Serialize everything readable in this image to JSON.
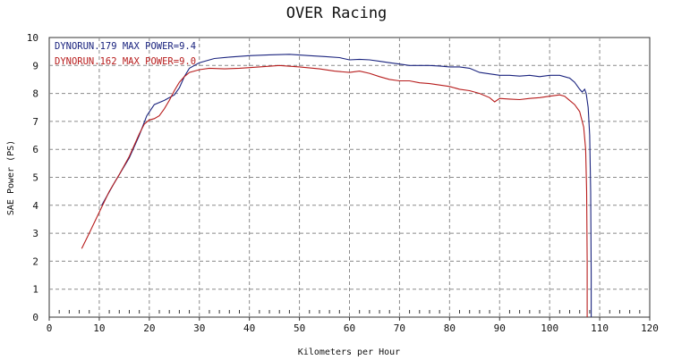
{
  "chart_data": {
    "type": "line",
    "title": "OVER Racing",
    "xlabel": "Kilometers per Hour",
    "ylabel": "SAE Power  (PS)",
    "xlim": [
      0,
      120
    ],
    "ylim": [
      0,
      10
    ],
    "x_ticks": [
      "0",
      "10",
      "20",
      "30",
      "40",
      "50",
      "60",
      "70",
      "80",
      "90",
      "100",
      "110",
      "120"
    ],
    "y_ticks": [
      "0",
      "1",
      "2",
      "3",
      "4",
      "5",
      "6",
      "7",
      "8",
      "9",
      "10"
    ],
    "grid": true,
    "legend_position": "top-left",
    "series": [
      {
        "name": "DYNORUN.179  MAX POWER=9.4",
        "color": "#1a237e",
        "points": [
          [
            10.5,
            4.0
          ],
          [
            13,
            4.8
          ],
          [
            16,
            5.7
          ],
          [
            18,
            6.5
          ],
          [
            19.5,
            7.2
          ],
          [
            21,
            7.6
          ],
          [
            23,
            7.75
          ],
          [
            25,
            7.95
          ],
          [
            26,
            8.2
          ],
          [
            27,
            8.6
          ],
          [
            28,
            8.9
          ],
          [
            30,
            9.1
          ],
          [
            33,
            9.25
          ],
          [
            36,
            9.3
          ],
          [
            40,
            9.35
          ],
          [
            44,
            9.38
          ],
          [
            48,
            9.4
          ],
          [
            52,
            9.35
          ],
          [
            55,
            9.32
          ],
          [
            58,
            9.28
          ],
          [
            60,
            9.2
          ],
          [
            62,
            9.22
          ],
          [
            64,
            9.2
          ],
          [
            66,
            9.15
          ],
          [
            68,
            9.1
          ],
          [
            70,
            9.05
          ],
          [
            72,
            9.0
          ],
          [
            74,
            9.0
          ],
          [
            76,
            9.0
          ],
          [
            78,
            8.98
          ],
          [
            80,
            8.95
          ],
          [
            82,
            8.95
          ],
          [
            84,
            8.9
          ],
          [
            86,
            8.75
          ],
          [
            88,
            8.7
          ],
          [
            90,
            8.65
          ],
          [
            92,
            8.65
          ],
          [
            94,
            8.62
          ],
          [
            96,
            8.65
          ],
          [
            98,
            8.6
          ],
          [
            100,
            8.65
          ],
          [
            102,
            8.65
          ],
          [
            104,
            8.55
          ],
          [
            105,
            8.4
          ],
          [
            106,
            8.15
          ],
          [
            106.5,
            8.05
          ],
          [
            107,
            8.15
          ],
          [
            107.3,
            8.0
          ],
          [
            107.7,
            7.5
          ],
          [
            108,
            6.5
          ],
          [
            108.2,
            4.5
          ],
          [
            108.3,
            1.5
          ],
          [
            108.3,
            0
          ]
        ]
      },
      {
        "name": "DYNORUN.162  MAX POWER=9.0",
        "color": "#b71c1c",
        "points": [
          [
            6.5,
            2.45
          ],
          [
            8,
            3.0
          ],
          [
            10,
            3.75
          ],
          [
            12,
            4.5
          ],
          [
            14,
            5.1
          ],
          [
            16,
            5.75
          ],
          [
            18,
            6.55
          ],
          [
            19,
            6.9
          ],
          [
            20,
            7.05
          ],
          [
            21,
            7.1
          ],
          [
            22,
            7.2
          ],
          [
            23,
            7.45
          ],
          [
            24,
            7.75
          ],
          [
            25,
            8.1
          ],
          [
            26,
            8.4
          ],
          [
            27,
            8.6
          ],
          [
            28,
            8.75
          ],
          [
            30,
            8.85
          ],
          [
            32,
            8.9
          ],
          [
            35,
            8.88
          ],
          [
            38,
            8.9
          ],
          [
            42,
            8.95
          ],
          [
            46,
            9.0
          ],
          [
            50,
            8.95
          ],
          [
            54,
            8.88
          ],
          [
            57,
            8.8
          ],
          [
            60,
            8.75
          ],
          [
            62,
            8.8
          ],
          [
            64,
            8.72
          ],
          [
            66,
            8.6
          ],
          [
            68,
            8.5
          ],
          [
            70,
            8.45
          ],
          [
            72,
            8.45
          ],
          [
            74,
            8.38
          ],
          [
            76,
            8.35
          ],
          [
            78,
            8.3
          ],
          [
            80,
            8.25
          ],
          [
            82,
            8.15
          ],
          [
            84,
            8.1
          ],
          [
            86,
            8.0
          ],
          [
            88,
            7.85
          ],
          [
            89,
            7.7
          ],
          [
            90,
            7.82
          ],
          [
            92,
            7.8
          ],
          [
            94,
            7.78
          ],
          [
            96,
            7.82
          ],
          [
            98,
            7.85
          ],
          [
            100,
            7.9
          ],
          [
            102,
            7.95
          ],
          [
            103,
            7.9
          ],
          [
            104,
            7.75
          ],
          [
            105,
            7.6
          ],
          [
            106,
            7.35
          ],
          [
            106.8,
            6.8
          ],
          [
            107.2,
            6.0
          ],
          [
            107.4,
            4.5
          ],
          [
            107.5,
            2.0
          ],
          [
            107.5,
            0
          ]
        ]
      }
    ]
  }
}
